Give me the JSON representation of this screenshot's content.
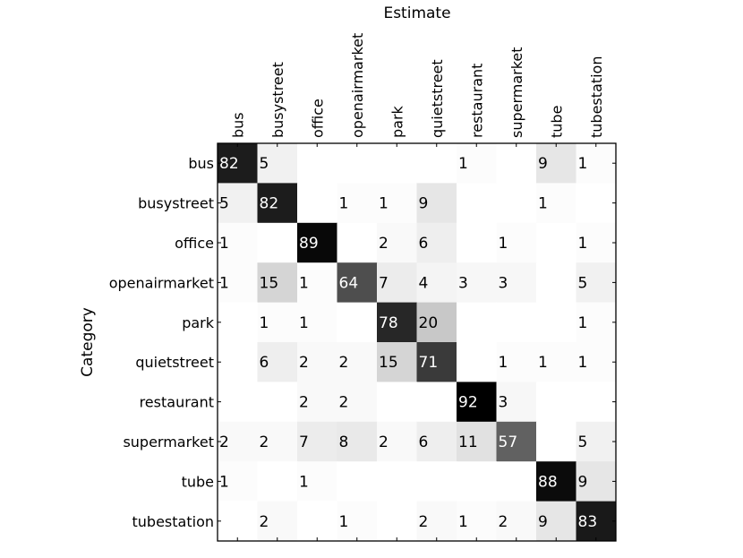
{
  "chart_data": {
    "type": "heatmap",
    "title": "",
    "xlabel": "Estimate",
    "ylabel": "Category",
    "x_categories": [
      "bus",
      "busystreet",
      "office",
      "openairmarket",
      "park",
      "quietstreet",
      "restaurant",
      "supermarket",
      "tube",
      "tubestation"
    ],
    "y_categories": [
      "bus",
      "busystreet",
      "office",
      "openairmarket",
      "park",
      "quietstreet",
      "restaurant",
      "supermarket",
      "tube",
      "tubestation"
    ],
    "values": [
      [
        82,
        5,
        0,
        0,
        0,
        0,
        1,
        0,
        9,
        1
      ],
      [
        5,
        82,
        0,
        1,
        1,
        9,
        0,
        0,
        1,
        0
      ],
      [
        1,
        0,
        89,
        0,
        2,
        6,
        0,
        1,
        0,
        1
      ],
      [
        1,
        15,
        1,
        64,
        7,
        4,
        3,
        3,
        0,
        5
      ],
      [
        0,
        1,
        1,
        0,
        78,
        20,
        0,
        0,
        0,
        1
      ],
      [
        0,
        6,
        2,
        2,
        15,
        71,
        0,
        1,
        1,
        1
      ],
      [
        0,
        0,
        2,
        2,
        0,
        0,
        92,
        3,
        0,
        0
      ],
      [
        2,
        2,
        7,
        8,
        2,
        6,
        11,
        57,
        0,
        5
      ],
      [
        1,
        0,
        1,
        0,
        0,
        0,
        0,
        0,
        88,
        9
      ],
      [
        0,
        2,
        0,
        1,
        0,
        2,
        1,
        2,
        9,
        83
      ]
    ],
    "colormap": "gray_reversed",
    "vmin": 0,
    "vmax": 92,
    "show_zero_labels": false
  }
}
